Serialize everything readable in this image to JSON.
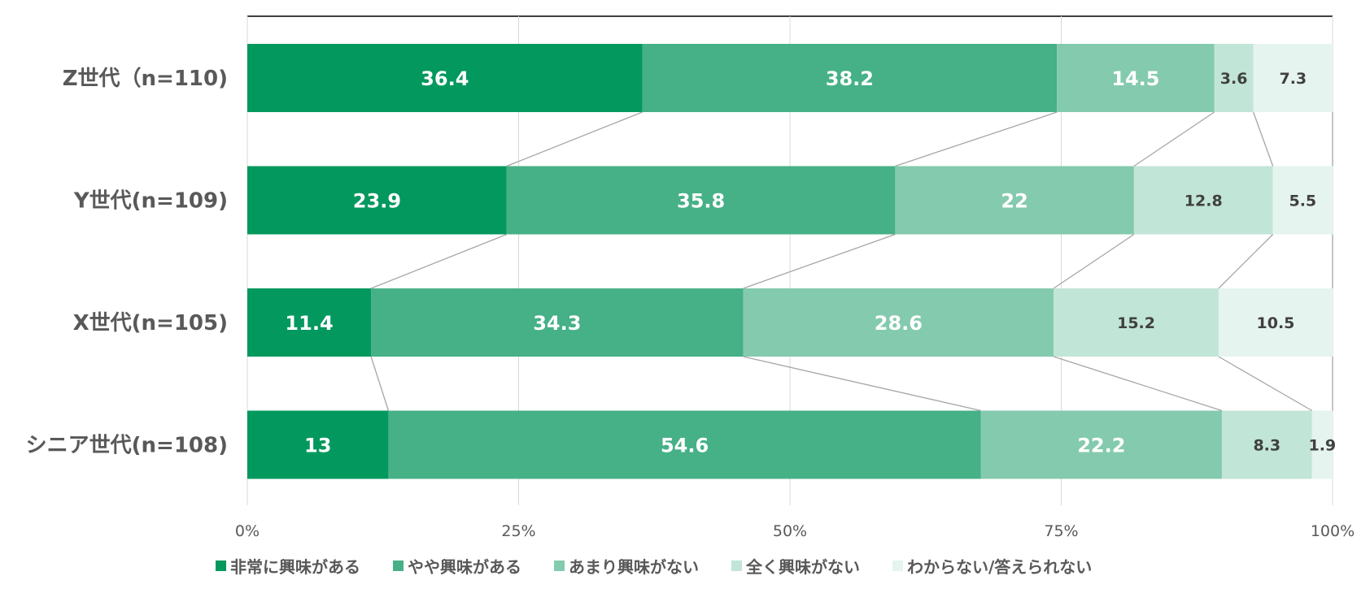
{
  "chart_data": {
    "type": "bar",
    "orientation": "horizontal",
    "stacked": "100%",
    "categories": [
      "Z世代（n=110)",
      "Y世代(n=109)",
      "X世代(n=105)",
      "シニア世代(n=108)"
    ],
    "series": [
      {
        "name": "非常に興味がある",
        "color": "#03985E",
        "values": [
          36.4,
          23.9,
          11.4,
          13
        ]
      },
      {
        "name": "やや興味がある",
        "color": "#46B087",
        "values": [
          38.2,
          35.8,
          34.3,
          54.6
        ]
      },
      {
        "name": "あまり興味がない",
        "color": "#84CAAE",
        "values": [
          14.5,
          22,
          28.6,
          22.2
        ]
      },
      {
        "name": "全く興味がない",
        "color": "#C1E5D6",
        "values": [
          3.6,
          12.8,
          15.2,
          8.3
        ]
      },
      {
        "name": "わからない/答えられない",
        "color": "#E5F4EE",
        "values": [
          7.3,
          5.5,
          10.5,
          1.9
        ]
      }
    ],
    "x_ticks": [
      "0%",
      "25%",
      "50%",
      "75%",
      "100%"
    ],
    "xlim": [
      0,
      100
    ],
    "grid": true,
    "series_lines": true,
    "legend_position": "bottom"
  }
}
